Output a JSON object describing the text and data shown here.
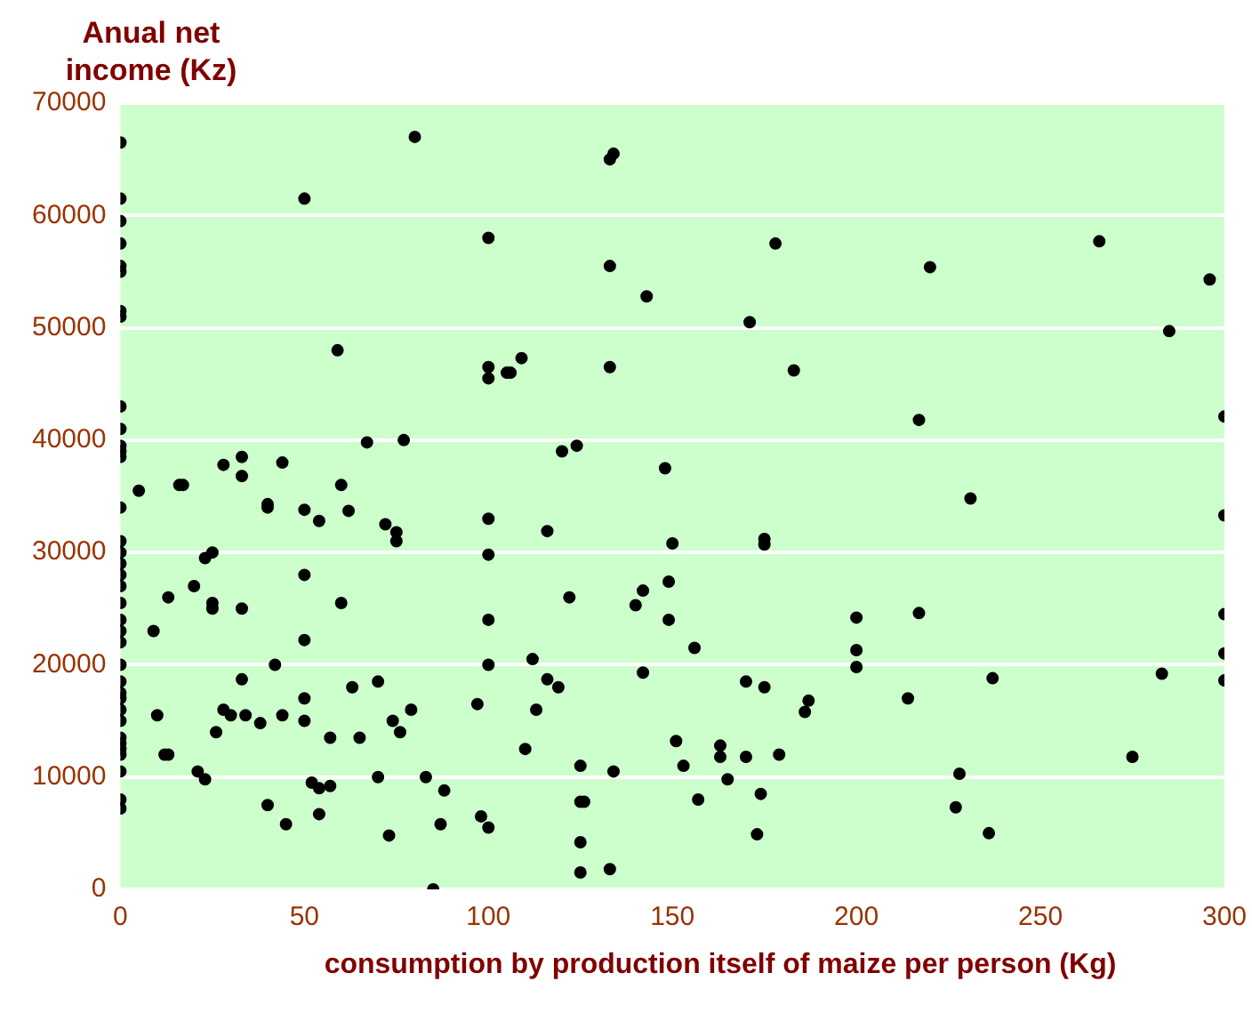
{
  "chart_data": {
    "type": "scatter",
    "xlabel": "consumption  by production itself of maize per person (Kg)",
    "ylabel": "Anual net income (Kz)",
    "xlim": [
      0,
      300
    ],
    "xticks": [
      0,
      50,
      100,
      150,
      200,
      250,
      300
    ],
    "ylim": [
      0,
      70000
    ],
    "yticks": [
      0,
      10000,
      20000,
      30000,
      40000,
      50000,
      60000,
      70000
    ],
    "grid": "y",
    "marker": "circle",
    "legend": false,
    "series": [
      {
        "color": "#000000",
        "x": [
          0,
          0,
          0,
          0,
          0,
          0,
          0,
          0,
          0,
          0,
          0,
          0,
          0,
          0,
          0,
          0,
          0,
          0,
          0,
          0,
          0,
          0,
          0,
          0,
          0,
          0,
          0,
          0,
          0,
          0,
          0,
          0,
          0,
          0,
          0,
          0,
          5,
          9,
          10,
          12,
          13,
          13,
          16,
          17,
          20,
          21,
          23,
          23,
          25,
          25,
          25,
          26,
          28,
          28,
          30,
          33,
          33,
          33,
          33,
          34,
          38,
          40,
          40,
          40,
          42,
          44,
          44,
          45,
          50,
          50,
          50,
          50,
          50,
          50,
          52,
          54,
          54,
          54,
          57,
          57,
          59,
          60,
          60,
          62,
          63,
          65,
          67,
          70,
          70,
          72,
          73,
          74,
          75,
          75,
          76,
          77,
          79,
          80,
          83,
          85,
          87,
          88,
          97,
          98,
          100,
          100,
          100,
          100,
          100,
          100,
          100,
          100,
          105,
          106,
          109,
          110,
          112,
          113,
          116,
          116,
          119,
          120,
          122,
          124,
          125,
          125,
          125,
          125,
          126,
          133,
          134,
          133,
          133,
          134,
          133,
          140,
          143,
          142,
          142,
          148,
          149,
          149,
          150,
          151,
          153,
          156,
          157,
          163,
          163,
          165,
          170,
          170,
          171,
          173,
          175,
          175,
          175,
          174,
          178,
          179,
          183,
          186,
          187,
          200,
          200,
          200,
          214,
          217,
          217,
          220,
          227,
          228,
          231,
          236,
          237,
          266,
          275,
          283,
          285,
          296,
          300,
          300,
          300,
          300,
          300
        ],
        "values": [
          66500,
          61500,
          59500,
          57500,
          55500,
          55000,
          51500,
          51000,
          43000,
          41000,
          39500,
          39000,
          38500,
          34000,
          31000,
          30000,
          29000,
          28000,
          27000,
          25500,
          24000,
          23000,
          22000,
          20000,
          18500,
          17500,
          17000,
          16000,
          15000,
          13500,
          13000,
          12500,
          12000,
          10500,
          8000,
          7200,
          35500,
          23000,
          15500,
          12000,
          12000,
          26000,
          36000,
          36000,
          27000,
          10500,
          29500,
          9800,
          30000,
          25500,
          25000,
          14000,
          37800,
          16000,
          15500,
          38500,
          36800,
          25000,
          18700,
          15500,
          14800,
          34300,
          34000,
          7500,
          20000,
          38000,
          15500,
          5800,
          61500,
          33800,
          28000,
          22200,
          17000,
          15000,
          9500,
          32800,
          9000,
          6700,
          9200,
          13500,
          48000,
          36000,
          25500,
          33700,
          18000,
          13500,
          39800,
          18500,
          10000,
          32500,
          4800,
          15000,
          31800,
          31000,
          14000,
          40000,
          16000,
          67000,
          10000,
          0,
          5800,
          8800,
          16500,
          6500,
          58000,
          46500,
          45500,
          33000,
          29800,
          24000,
          20000,
          5500,
          46000,
          46000,
          47300,
          12500,
          20500,
          16000,
          18700,
          31900,
          18000,
          39000,
          26000,
          39500,
          11000,
          7800,
          4200,
          1500,
          7800,
          65000,
          65500,
          55500,
          46500,
          10500,
          1800,
          25300,
          52800,
          26600,
          19300,
          37500,
          27400,
          24000,
          30800,
          13200,
          11000,
          21500,
          8000,
          12800,
          11800,
          9800,
          18500,
          11800,
          50500,
          4900,
          18000,
          31200,
          30700,
          8500,
          57500,
          12000,
          46200,
          15800,
          16800,
          24200,
          21300,
          19800,
          17000,
          41800,
          24600,
          55400,
          7300,
          10300,
          34800,
          5000,
          18800,
          57700,
          11800,
          19200,
          49700,
          54300,
          42100,
          33300,
          24500,
          21000,
          18600
        ]
      }
    ]
  }
}
